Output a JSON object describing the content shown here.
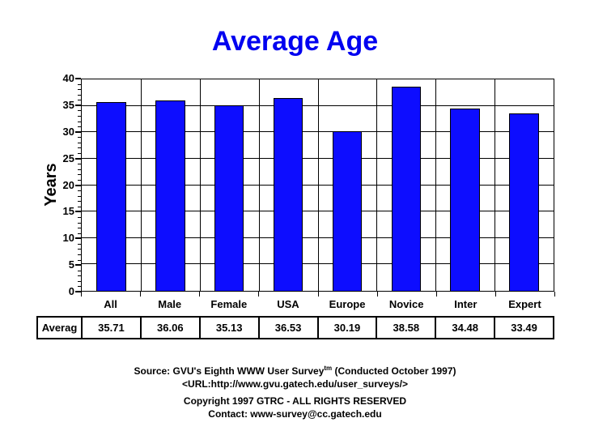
{
  "title": "Average Age",
  "colors": {
    "title": "#0000f0",
    "bar_fill": "#0d0dff",
    "bar_border": "#000000",
    "axis": "#000000"
  },
  "chart_data": {
    "type": "bar",
    "title": "Average Age",
    "xlabel": "",
    "ylabel": "Years",
    "categories": [
      "All",
      "Male",
      "Female",
      "USA",
      "Europe",
      "Novice",
      "Inter",
      "Expert"
    ],
    "values": [
      35.71,
      36.06,
      35.13,
      36.53,
      30.19,
      38.58,
      34.48,
      33.49
    ],
    "ylim": [
      0,
      40
    ],
    "ytick_step": 5,
    "minor_tick_step": 1,
    "grid": "on",
    "legend": "none"
  },
  "table": {
    "row_label": "Averag",
    "values": [
      "35.71",
      "36.06",
      "35.13",
      "36.53",
      "30.19",
      "38.58",
      "34.48",
      "33.49"
    ]
  },
  "footer": {
    "line1_prefix": "Source: GVU's Eighth WWW User Survey",
    "line1_sup": "tm",
    "line1_suffix": " (Conducted October 1997)",
    "line2": "<URL:http://www.gvu.gatech.edu/user_surveys/>",
    "line3": "Copyright 1997 GTRC - ALL RIGHTS RESERVED",
    "line4": "Contact: www-survey@cc.gatech.edu"
  }
}
